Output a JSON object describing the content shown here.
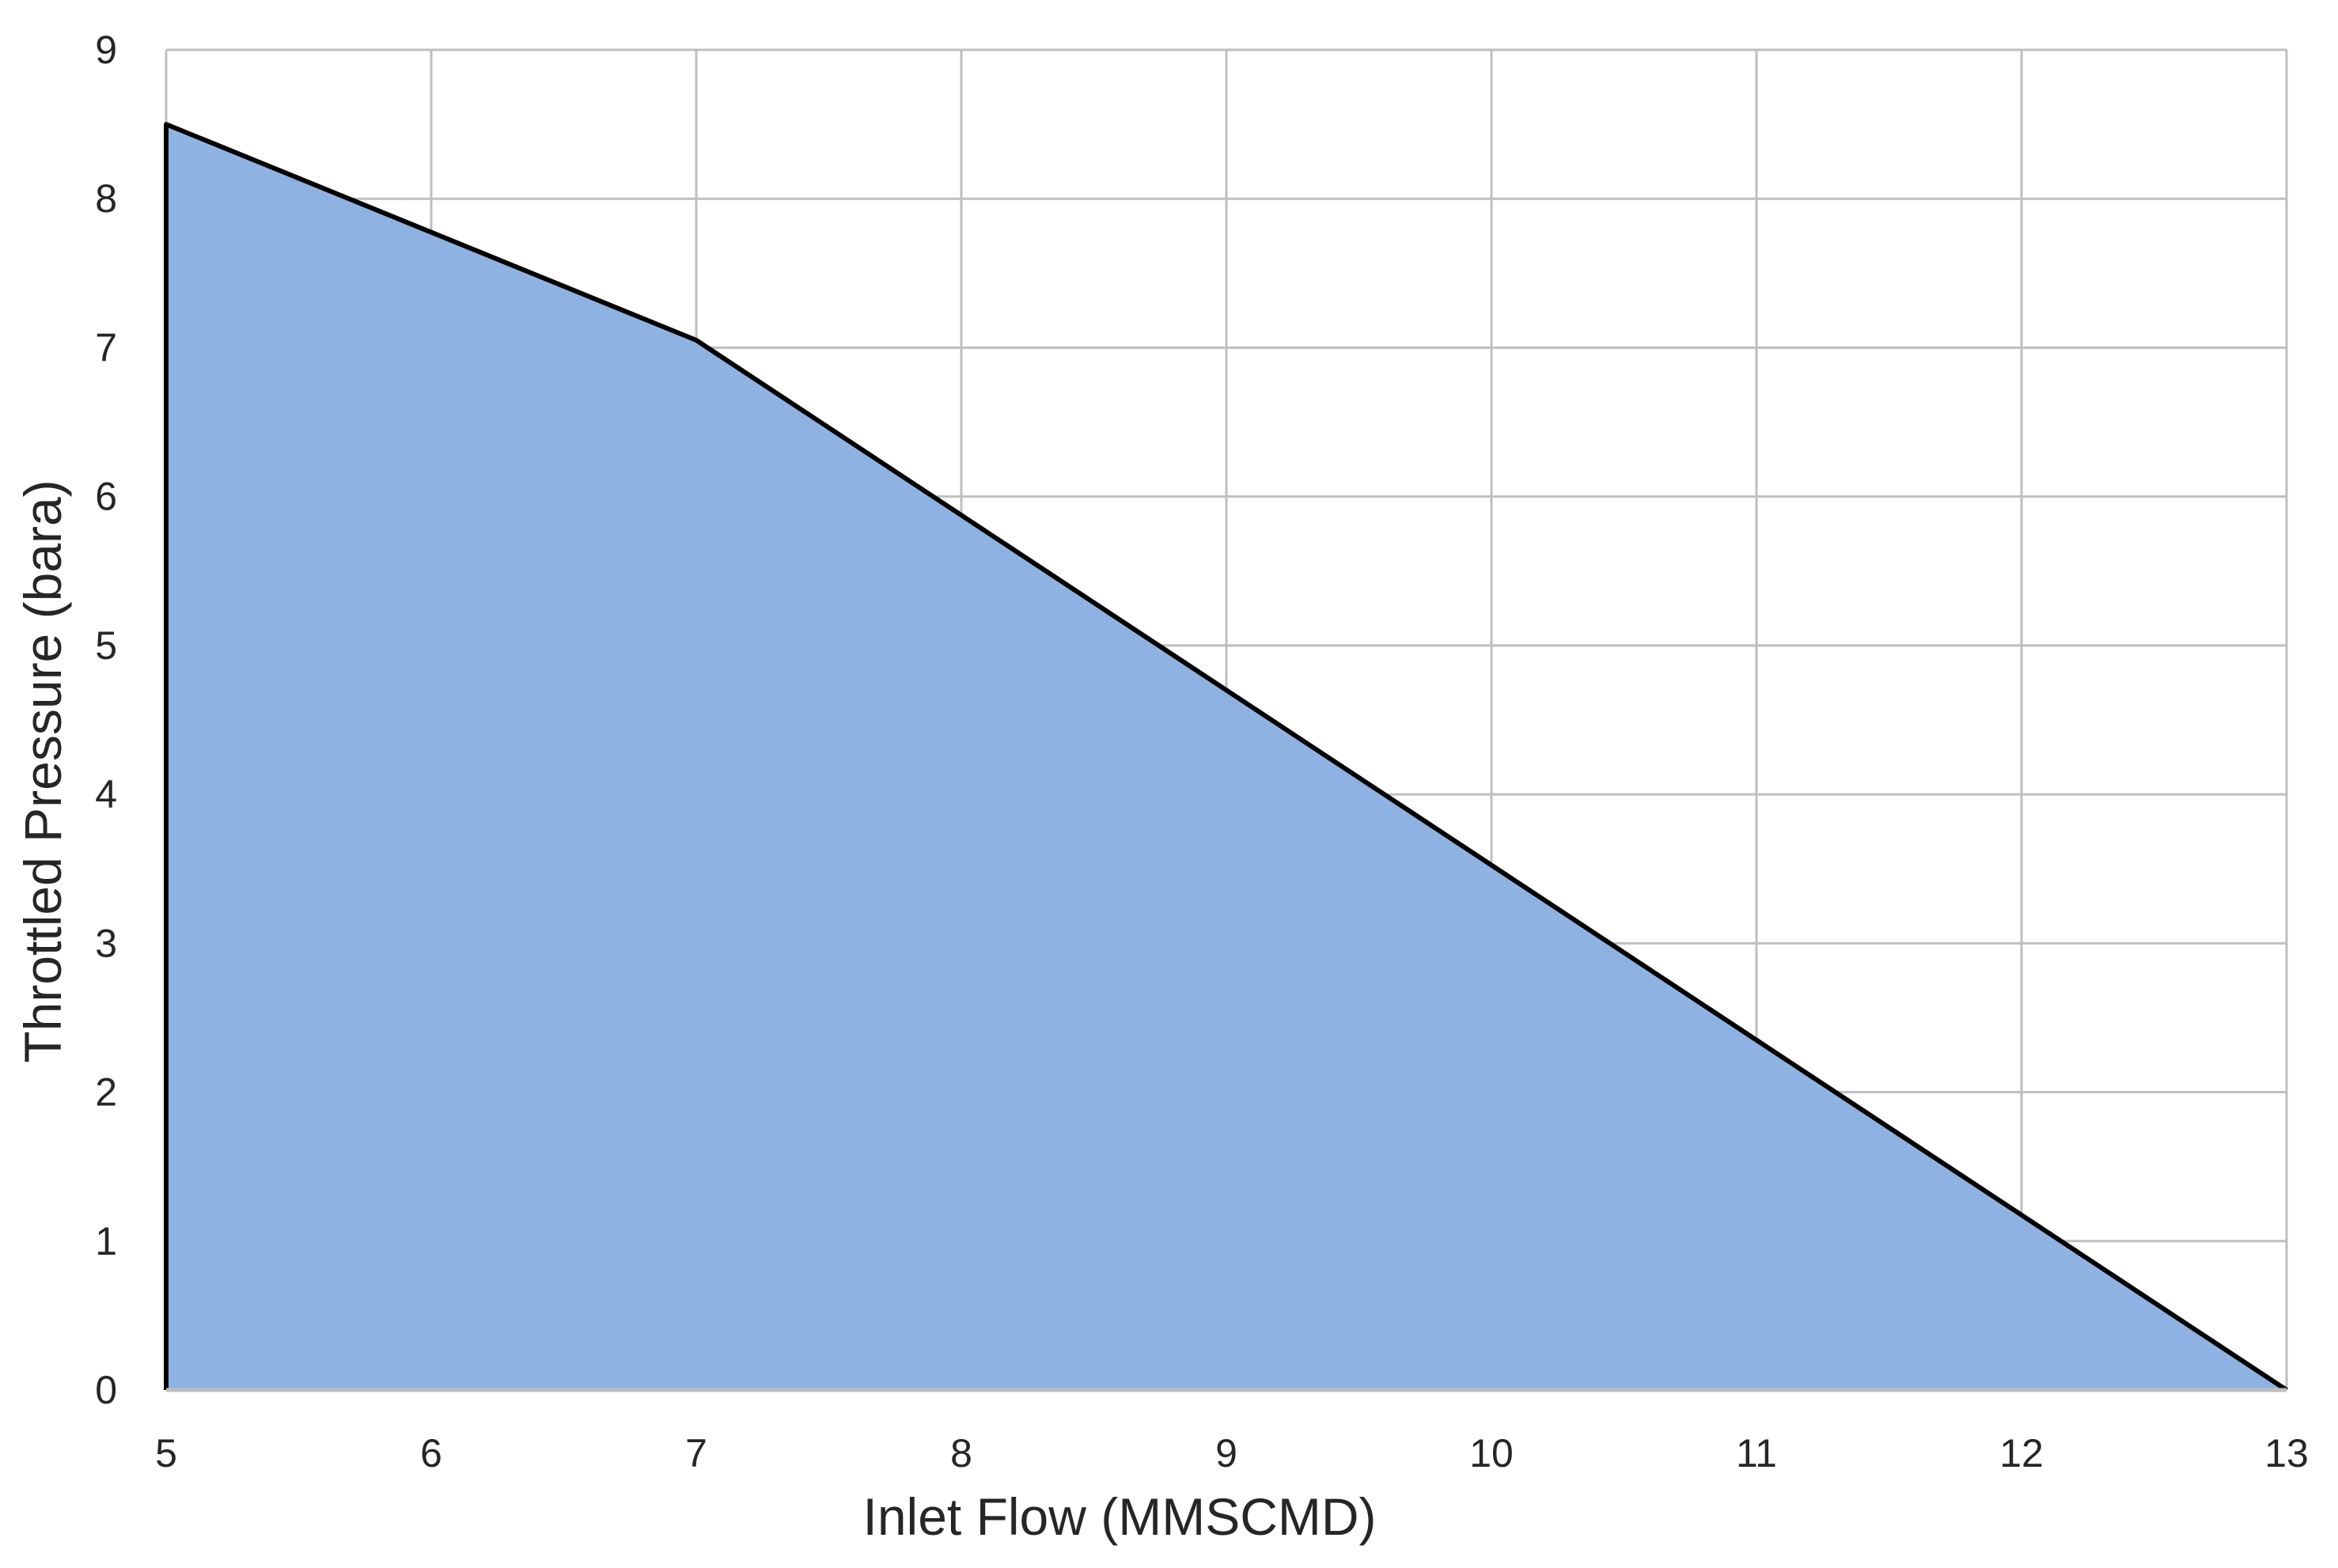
{
  "chart_data": {
    "type": "area",
    "title": "",
    "xlabel": "Inlet Flow (MMSCMD)",
    "ylabel": "Throttled Pressure (bara)",
    "xlim": [
      5,
      13
    ],
    "ylim": [
      0,
      9
    ],
    "xticks": [
      "5",
      "6",
      "7",
      "8",
      "9",
      "10",
      "11",
      "12",
      "13"
    ],
    "yticks": [
      "0",
      "1",
      "2",
      "3",
      "4",
      "5",
      "6",
      "7",
      "8",
      "9"
    ],
    "grid": true,
    "legend": "none",
    "series": [
      {
        "x": [
          5,
          7,
          13
        ],
        "y": [
          8.5,
          7.05,
          0
        ]
      }
    ],
    "colors": {
      "fill": "#8eb3e3",
      "line": "#000000",
      "grid": "#bfbfbf",
      "text": "#262626"
    }
  }
}
